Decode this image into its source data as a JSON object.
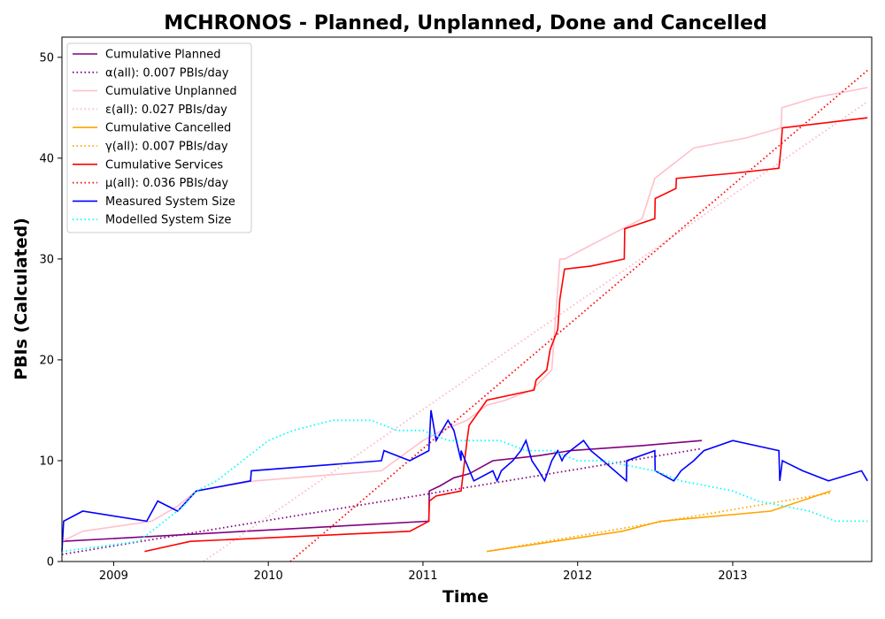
{
  "chart_data": {
    "type": "line",
    "title": "MCHRONOS - Planned, Unplanned, Done  and Cancelled",
    "xlabel": "Time",
    "ylabel": "PBIs (Calculated)",
    "xlim": [
      "2008-09-01",
      "2013-11-25"
    ],
    "ylim": [
      0,
      52
    ],
    "xticks": [
      "2009",
      "2010",
      "2011",
      "2012",
      "2013"
    ],
    "xtick_dates": [
      "2009-01-01",
      "2010-01-01",
      "2011-01-01",
      "2012-01-01",
      "2013-01-01"
    ],
    "yticks": [
      0,
      10,
      20,
      30,
      40,
      50
    ],
    "grid": false,
    "legend_position": "top-left",
    "series": [
      {
        "name": "Cumulative Planned",
        "color": "#800080",
        "style": "solid",
        "x": [
          "2008-09-01",
          "2011-01-15",
          "2011-01-16",
          "2011-02-10",
          "2011-03-15",
          "2011-04-20",
          "2011-06-15",
          "2011-10-01",
          "2011-12-15",
          "2012-06-01",
          "2012-10-20"
        ],
        "y": [
          2,
          4,
          7,
          7.5,
          8.3,
          8.7,
          10,
          10.5,
          11,
          11.5,
          12
        ]
      },
      {
        "name": "α(all): 0.007 PBIs/day",
        "color": "#800080",
        "style": "dotted",
        "x": [
          "2008-09-01",
          "2012-10-20"
        ],
        "y": [
          0.7,
          11.2
        ]
      },
      {
        "name": "Cumulative Unplanned",
        "color": "#ffc0cb",
        "style": "solid",
        "x": [
          "2008-09-01",
          "2008-10-20",
          "2009-04-01",
          "2009-06-01",
          "2009-07-15",
          "2009-12-01",
          "2010-09-25",
          "2011-01-01",
          "2011-02-15",
          "2011-04-15",
          "2011-06-01",
          "2011-07-15",
          "2011-09-15",
          "2011-11-01",
          "2011-11-20",
          "2011-12-01",
          "2012-01-15",
          "2012-03-01",
          "2012-06-01",
          "2012-07-01",
          "2012-10-01",
          "2013-02-01",
          "2013-04-25",
          "2013-04-27",
          "2013-07-15",
          "2013-11-15"
        ],
        "y": [
          2,
          3,
          4,
          5.5,
          7,
          8,
          9,
          12,
          13,
          14,
          15.5,
          16,
          17,
          19,
          30,
          30,
          31,
          32,
          34,
          38,
          41,
          42,
          43,
          45,
          46,
          47
        ]
      },
      {
        "name": "ε(all): 0.027 PBIs/day",
        "color": "#ffb6c1",
        "style": "dotted",
        "x": [
          "2009-08-01",
          "2013-11-15"
        ],
        "y": [
          0,
          45.6
        ]
      },
      {
        "name": "Cumulative Cancelled",
        "color": "#ffa500",
        "style": "solid",
        "x": [
          "2011-06-01",
          "2012-04-15",
          "2012-07-15",
          "2013-04-01",
          "2013-08-20"
        ],
        "y": [
          1,
          3,
          4,
          5,
          7
        ]
      },
      {
        "name": "γ(all): 0.007 PBIs/day",
        "color": "#ffa500",
        "style": "dotted",
        "x": [
          "2011-06-01",
          "2013-08-20"
        ],
        "y": [
          1,
          6.8
        ]
      },
      {
        "name": "Cumulative Services",
        "color": "#ff0000",
        "style": "solid",
        "x": [
          "2009-03-15",
          "2009-07-01",
          "2010-12-01",
          "2011-01-15",
          "2011-01-16",
          "2011-02-01",
          "2011-04-01",
          "2011-04-15",
          "2011-04-20",
          "2011-06-01",
          "2011-09-20",
          "2011-09-25",
          "2011-10-20",
          "2011-10-28",
          "2011-11-15",
          "2011-11-20",
          "2011-12-01",
          "2012-02-01",
          "2012-04-20",
          "2012-04-21",
          "2012-07-01",
          "2012-07-02",
          "2012-08-20",
          "2012-08-21",
          "2013-01-01",
          "2013-04-20",
          "2013-04-25",
          "2013-04-28",
          "2013-11-15"
        ],
        "y": [
          1,
          2,
          3,
          4,
          6,
          6.5,
          7,
          12,
          13.5,
          16,
          17,
          18,
          19,
          21,
          23,
          26,
          29,
          29.3,
          30,
          33,
          34,
          36,
          37,
          38,
          38.5,
          39,
          41,
          43,
          44
        ]
      },
      {
        "name": "μ(all): 0.036 PBIs/day",
        "color": "#ff0000",
        "style": "dotted",
        "x": [
          "2010-02-22",
          "2013-11-15"
        ],
        "y": [
          0,
          48.7
        ]
      },
      {
        "name": "Measured System Size",
        "color": "#0000ff",
        "style": "solid",
        "x": [
          "2008-09-01",
          "2008-09-05",
          "2008-10-20",
          "2009-03-20",
          "2009-04-15",
          "2009-06-01",
          "2009-07-15",
          "2009-11-20",
          "2009-11-22",
          "2010-09-25",
          "2010-10-01",
          "2010-12-01",
          "2011-01-15",
          "2011-01-20",
          "2011-02-01",
          "2011-03-01",
          "2011-03-15",
          "2011-04-01",
          "2011-04-01",
          "2011-05-01",
          "2011-06-15",
          "2011-06-25",
          "2011-07-05",
          "2011-08-01",
          "2011-08-20",
          "2011-09-01",
          "2011-09-15",
          "2011-10-01",
          "2011-10-15",
          "2011-11-01",
          "2011-11-15",
          "2011-11-25",
          "2011-12-01",
          "2011-12-15",
          "2012-01-15",
          "2012-02-01",
          "2012-03-01",
          "2012-04-25",
          "2012-04-26",
          "2012-07-01",
          "2012-07-02",
          "2012-08-15",
          "2012-09-01",
          "2012-10-01",
          "2012-10-25",
          "2013-01-01",
          "2013-04-20",
          "2013-04-22",
          "2013-04-28",
          "2013-06-15",
          "2013-08-15",
          "2013-11-01",
          "2013-11-15"
        ],
        "y": [
          1,
          4,
          5,
          4,
          6,
          5,
          7,
          8,
          9,
          10,
          11,
          10,
          11,
          15,
          12,
          14,
          13,
          10,
          11,
          8,
          9,
          8,
          9,
          10,
          11,
          12,
          10,
          9,
          8,
          10,
          11,
          10,
          10.5,
          11,
          12,
          11,
          10,
          8,
          10,
          11,
          9,
          8,
          9,
          10,
          11,
          12,
          11,
          8,
          10,
          9,
          8,
          9,
          8
        ]
      },
      {
        "name": "Modelled System Size",
        "color": "#00ffff",
        "style": "dotted",
        "x": [
          "2008-09-01",
          "2008-12-01",
          "2009-03-01",
          "2009-05-01",
          "2009-06-15",
          "2009-07-15",
          "2009-09-01",
          "2009-11-01",
          "2010-01-01",
          "2010-03-01",
          "2010-06-01",
          "2010-09-01",
          "2010-11-01",
          "2011-01-01",
          "2011-03-01",
          "2011-05-01",
          "2011-07-01",
          "2011-09-01",
          "2011-11-01",
          "2012-01-01",
          "2012-03-01",
          "2012-05-01",
          "2012-07-01",
          "2012-09-01",
          "2012-11-01",
          "2013-01-01",
          "2013-03-01",
          "2013-05-01",
          "2013-07-01",
          "2013-09-01",
          "2013-11-15"
        ],
        "y": [
          1,
          1.5,
          2,
          4,
          5.5,
          7,
          8,
          10,
          12,
          13,
          14,
          14,
          13,
          13,
          12,
          12,
          12,
          11,
          11,
          10,
          10,
          9.5,
          9,
          8,
          7.5,
          7,
          6,
          5.5,
          5,
          4,
          4
        ]
      }
    ]
  }
}
